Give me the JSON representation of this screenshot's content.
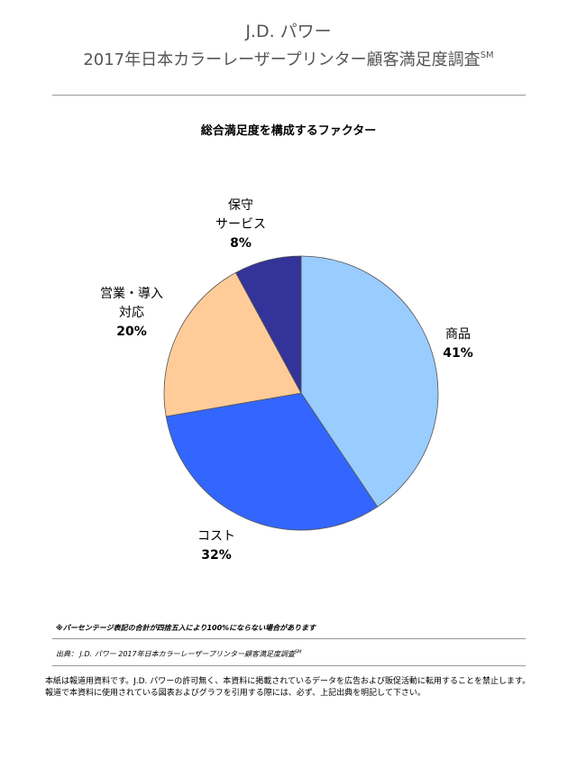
{
  "header": {
    "brand": "J.D. パワー",
    "survey_title": "2017年日本カラーレーザープリンター顧客満足度調査",
    "survey_mark": "SM"
  },
  "chart_data": {
    "type": "pie",
    "title": "総合満足度を構成するファクター",
    "slices": [
      {
        "label_lines": [
          "商品"
        ],
        "value": 41,
        "value_text": "41%",
        "color": "#99CCFF"
      },
      {
        "label_lines": [
          "コスト"
        ],
        "value": 32,
        "value_text": "32%",
        "color": "#3366FF"
      },
      {
        "label_lines": [
          "営業・導入",
          "対応"
        ],
        "value": 20,
        "value_text": "20%",
        "color": "#FFCC99"
      },
      {
        "label_lines": [
          "保守",
          "サービス"
        ],
        "value": 8,
        "value_text": "8%",
        "color": "#333399"
      }
    ],
    "start": "12 o'clock",
    "direction": "clockwise"
  },
  "footer": {
    "note": "※パーセンテージ表記の合計が四捨五入により100%にならない場合があります",
    "source_label": "出典：",
    "source_text": "J.D. パワー 2017年日本カラーレーザープリンター顧客満足度調査",
    "source_mark": "SM",
    "disclaimer_1": "本紙は報道用資料です。J.D. パワーの許可無く、本資料に掲載されているデータを広告および販促活動に転用することを禁止します。",
    "disclaimer_2": "報道で本資料に使用されている図表およびグラフを引用する際には、必ず、上記出典を明記して下さい。"
  }
}
